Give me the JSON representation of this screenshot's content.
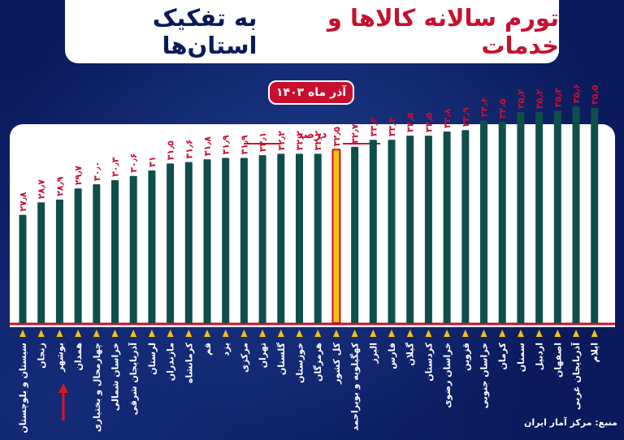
{
  "header": {
    "title_red": "تورم سالانه کالاها و خدمات",
    "title_blue": "به تفکیک استان‌ها"
  },
  "date_label": "آذر ماه ۱۴۰۳",
  "source_label": "منبع: مرکز آمار ایران",
  "colors": {
    "bar": "#0e4f4c",
    "highlight_bar": "#f4c20d",
    "highlight_border": "#c8102e",
    "label_red": "#c8102e",
    "axis_line": "#c8102e",
    "marker": "#f4c20d",
    "background": "#0a1a5c",
    "arrow": "#e0161f"
  },
  "chart_data": {
    "type": "bar",
    "unit_label": "درصد",
    "categories": [
      "سیستان و بلوچستان",
      "زنجان",
      "بوشهر",
      "همدان",
      "چهارمحال و بختیاری",
      "خراسان شمالی",
      "آذربایجان شرقی",
      "لرستان",
      "مازندران",
      "کرمانشاه",
      "قم",
      "یزد",
      "مرکزی",
      "تهران",
      "گلستان",
      "خوزستان",
      "هرمزگان",
      "کل کشور",
      "کهگیلویه و بویراحمد",
      "البرز",
      "فارس",
      "گیلان",
      "کردستان",
      "خراسان رضوی",
      "قزوین",
      "خراسان جنوبی",
      "کرمان",
      "سمنان",
      "اردبیل",
      "اصفهان",
      "آذربایجان غربی",
      "ایلام"
    ],
    "values": [
      27.8,
      28.7,
      28.9,
      29.7,
      30.0,
      30.3,
      30.6,
      31.0,
      31.5,
      31.6,
      31.8,
      31.9,
      31.9,
      32.1,
      32.2,
      32.2,
      32.2,
      32.5,
      32.7,
      33.2,
      33.2,
      33.5,
      33.5,
      33.8,
      33.9,
      34.6,
      34.5,
      35.2,
      35.2,
      35.3,
      35.6,
      35.5
    ],
    "value_labels": [
      "۲۷٫۸",
      "۲۸٫۷",
      "۲۸٫۹",
      "۲۹٫۷",
      "۳۰٫۰",
      "۳۰٫۳",
      "۳۰٫۶",
      "۳۱",
      "۳۱٫۵",
      "۳۱٫۶",
      "۳۱٫۸",
      "۳۱٫۹",
      "۳۱٫۹",
      "۳۲٫۱",
      "۳۲٫۲",
      "۳۲٫۲",
      "۳۲٫۲",
      "۳۲٫۵",
      "۳۲٫۷",
      "۳۳٫۲",
      "۳۳٫۲",
      "۳۳٫۵",
      "۳۳٫۵",
      "۳۳٫۸",
      "۳۳٫۹",
      "۳۴٫۶",
      "۳۴٫۵",
      "۳۵٫۲",
      "۳۵٫۲",
      "۳۵٫۳",
      "۳۵٫۶",
      "۳۵٫۵"
    ],
    "highlight_index": 17,
    "arrow_index": 2,
    "ylim": [
      0,
      36
    ],
    "grid": false
  }
}
